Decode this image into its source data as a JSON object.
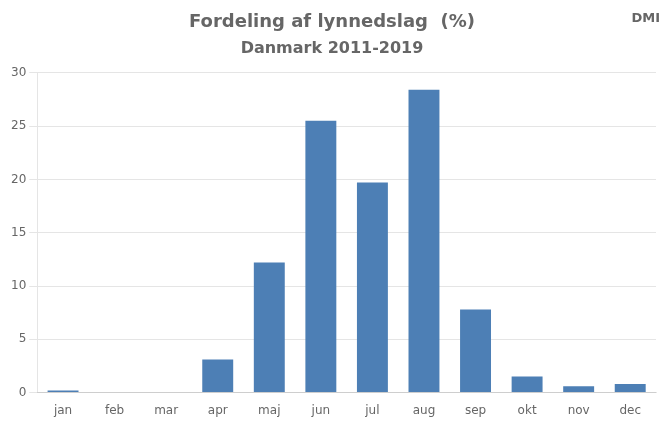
{
  "chart_data": {
    "type": "bar",
    "title": "Fordeling af lynnedslag  (%)",
    "subtitle": "Danmark 2011-2019",
    "annotations": [
      "DMI"
    ],
    "categories": [
      "jan",
      "feb",
      "mar",
      "apr",
      "maj",
      "jun",
      "jul",
      "aug",
      "sep",
      "okt",
      "nov",
      "dec"
    ],
    "values": [
      0.2,
      0.0,
      0.0,
      3.1,
      12.2,
      25.5,
      19.7,
      28.4,
      7.8,
      1.5,
      0.6,
      0.8
    ],
    "color": "#4d7fb5",
    "ylim": [
      0,
      30
    ],
    "yticks": [
      0,
      5,
      10,
      15,
      20,
      25,
      30
    ],
    "grid": true
  }
}
